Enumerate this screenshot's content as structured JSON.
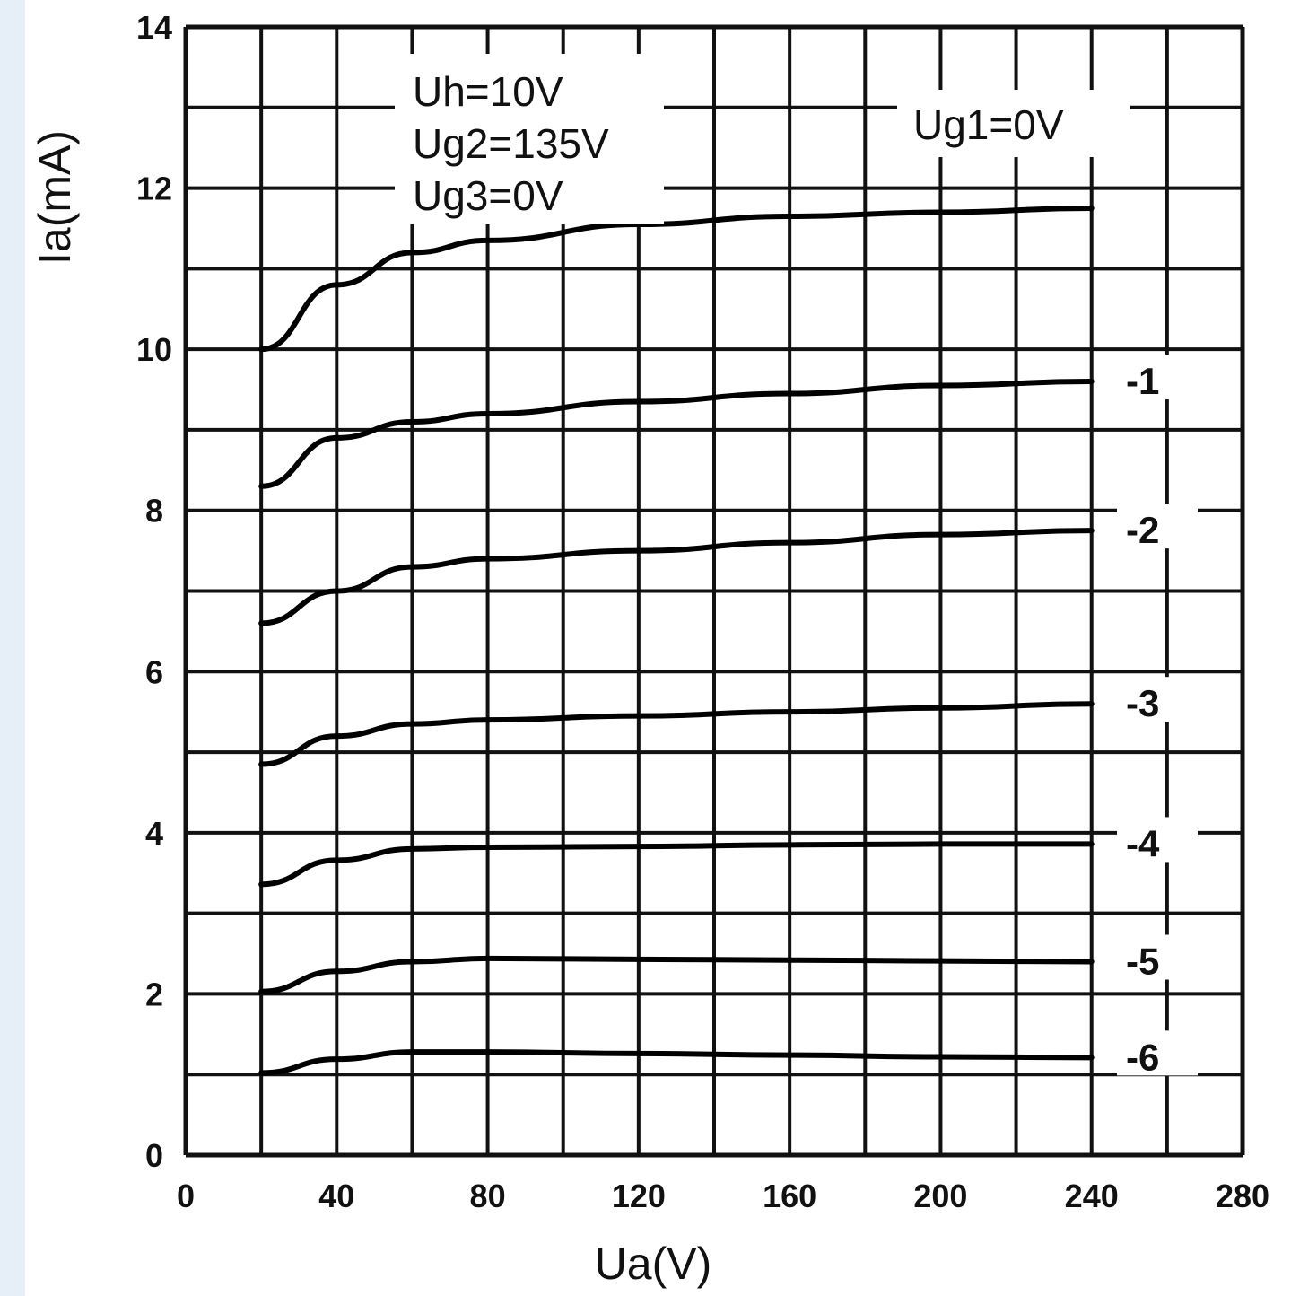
{
  "chart_data": {
    "type": "line",
    "title": "",
    "xlabel": "Ua(V)",
    "ylabel": "Ia(mA)",
    "xlim": [
      0,
      280
    ],
    "ylim": [
      0,
      14
    ],
    "grid": true,
    "x_ticks": [
      "0",
      "40",
      "80",
      "120",
      "160",
      "200",
      "240",
      "280"
    ],
    "y_ticks": [
      "0",
      "2",
      "4",
      "6",
      "8",
      "10",
      "12",
      "14"
    ],
    "annotations": [
      "Uh=10V",
      "Ug2=135V",
      "Ug3=0V",
      "Ug1=0V"
    ],
    "x": [
      20,
      40,
      60,
      80,
      120,
      160,
      200,
      240
    ],
    "series": [
      {
        "name": "Ug1=0V",
        "label": "",
        "values": [
          10.0,
          10.8,
          11.2,
          11.35,
          11.55,
          11.65,
          11.7,
          11.75
        ]
      },
      {
        "name": "-1",
        "label": "-1",
        "values": [
          8.3,
          8.9,
          9.1,
          9.2,
          9.35,
          9.45,
          9.55,
          9.6
        ]
      },
      {
        "name": "-2",
        "label": "-2",
        "values": [
          6.6,
          7.0,
          7.3,
          7.4,
          7.5,
          7.6,
          7.7,
          7.75
        ]
      },
      {
        "name": "-3",
        "label": "-3",
        "values": [
          4.85,
          5.2,
          5.35,
          5.4,
          5.45,
          5.5,
          5.55,
          5.6
        ]
      },
      {
        "name": "-4",
        "label": "-4",
        "values": [
          3.36,
          3.66,
          3.8,
          3.82,
          3.83,
          3.85,
          3.86,
          3.86
        ]
      },
      {
        "name": "-5",
        "label": "-5",
        "values": [
          2.03,
          2.28,
          2.4,
          2.44,
          2.43,
          2.42,
          2.41,
          2.4
        ]
      },
      {
        "name": "-6",
        "label": "-6",
        "values": [
          1.02,
          1.19,
          1.28,
          1.28,
          1.26,
          1.24,
          1.22,
          1.21
        ]
      }
    ]
  }
}
